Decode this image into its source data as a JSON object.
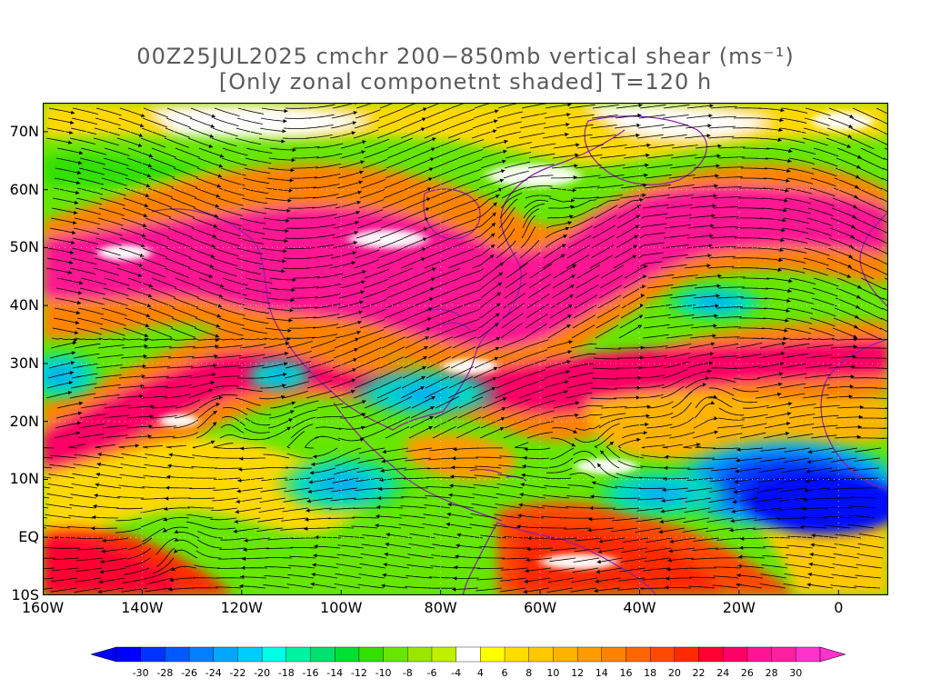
{
  "title": {
    "line1": "00Z25JUL2025 cmchr 200−850mb vertical shear (ms⁻¹)",
    "line2": "[Only zonal componetnt shaded] T=120 h"
  },
  "map": {
    "lon_range": [
      -160,
      10
    ],
    "lat_range": [
      -10,
      75
    ],
    "lat_ticks": [
      {
        "value": 70,
        "label": "70N"
      },
      {
        "value": 60,
        "label": "60N"
      },
      {
        "value": 50,
        "label": "50N"
      },
      {
        "value": 40,
        "label": "40N"
      },
      {
        "value": 30,
        "label": "30N"
      },
      {
        "value": 20,
        "label": "20N"
      },
      {
        "value": 10,
        "label": "10N"
      },
      {
        "value": 0,
        "label": "EQ"
      },
      {
        "value": -10,
        "label": "10S"
      }
    ],
    "lon_ticks": [
      {
        "value": -160,
        "label": "160W"
      },
      {
        "value": -140,
        "label": "140W"
      },
      {
        "value": -120,
        "label": "120W"
      },
      {
        "value": -100,
        "label": "100W"
      },
      {
        "value": -80,
        "label": "80W"
      },
      {
        "value": -60,
        "label": "60W"
      },
      {
        "value": -40,
        "label": "40W"
      },
      {
        "value": -20,
        "label": "20W"
      },
      {
        "value": 0,
        "label": "0"
      }
    ],
    "colors": {
      "land_outline": "#8a1fa8",
      "streamline": "#000000",
      "frame": "#000000"
    }
  },
  "colorbar": {
    "labels": [
      "-30",
      "-28",
      "-26",
      "-24",
      "-22",
      "-20",
      "-18",
      "-16",
      "-14",
      "-12",
      "-10",
      "-8",
      "-6",
      "-4",
      "4",
      "6",
      "8",
      "10",
      "12",
      "14",
      "16",
      "18",
      "20",
      "22",
      "24",
      "26",
      "28",
      "30"
    ],
    "colors": [
      "#0000ff",
      "#0033ff",
      "#0059ff",
      "#0080ff",
      "#00a6ff",
      "#00ccff",
      "#00ffe6",
      "#00f2a0",
      "#00e070",
      "#00e030",
      "#33e000",
      "#66e600",
      "#99e600",
      "#bff000",
      "#ffffff",
      "#ffff00",
      "#ffdd00",
      "#ffc800",
      "#ffb300",
      "#ff9a00",
      "#ff8200",
      "#ff6600",
      "#ff4a00",
      "#ff2a00",
      "#ff0033",
      "#ff0066",
      "#ff1493",
      "#ff1fa0",
      "#ff33cc"
    ],
    "under_color": "#0000ff",
    "over_color": "#ff33cc"
  }
}
